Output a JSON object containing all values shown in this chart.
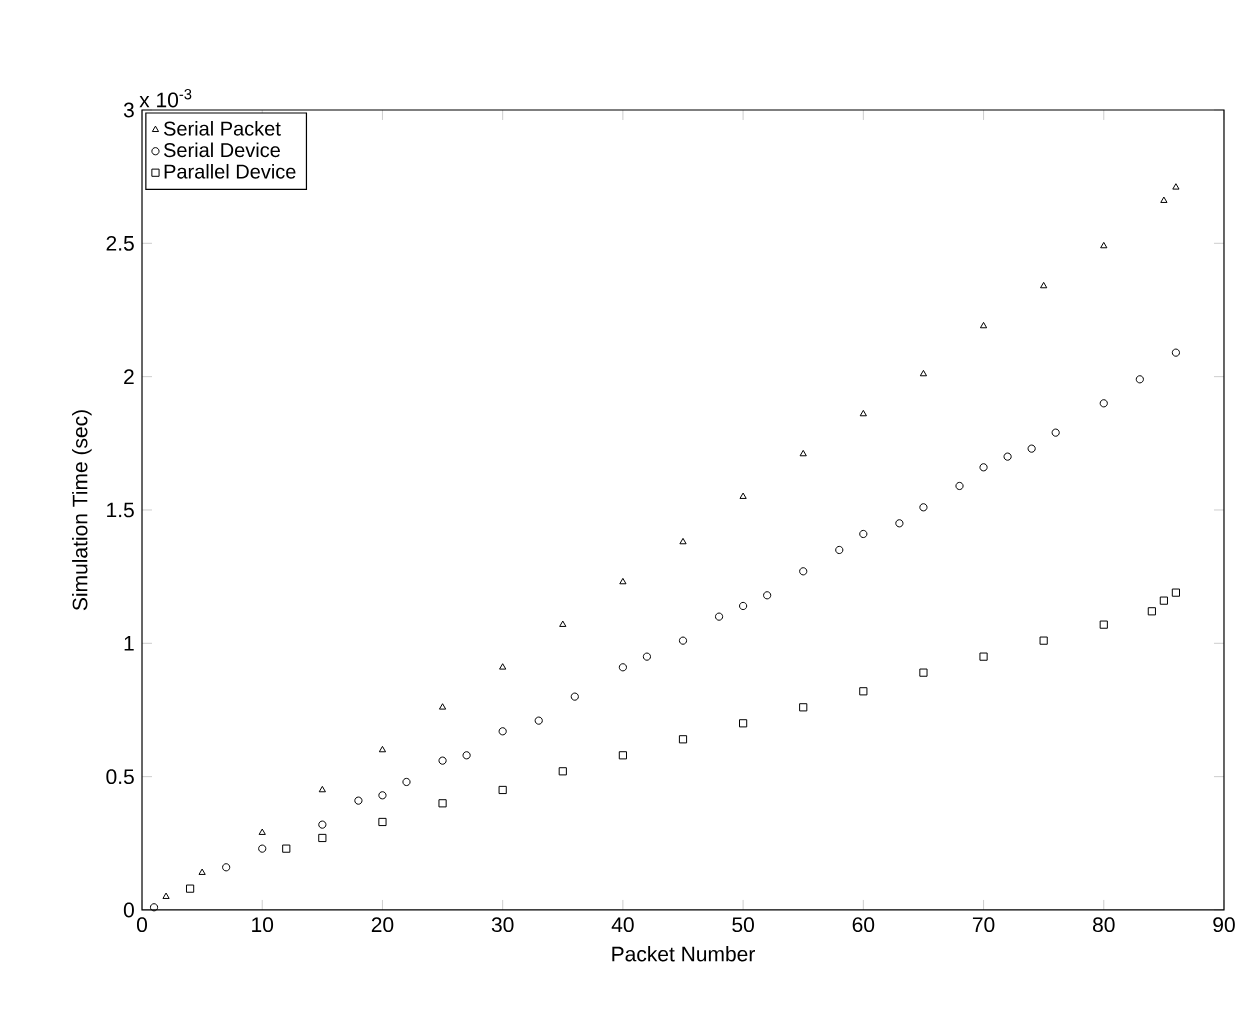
{
  "chart_data": {
    "type": "scatter",
    "xlabel": "Packet Number",
    "ylabel": "Simulation Time (sec)",
    "annotations": [
      "x 10$^{-3}$"
    ],
    "xlim": [
      0,
      90
    ],
    "xticks": [
      0,
      10,
      20,
      30,
      40,
      50,
      60,
      70,
      80,
      90
    ],
    "ylim": [
      0,
      3
    ],
    "yticks": [
      0,
      0.5,
      1,
      1.5,
      2,
      2.5,
      3
    ],
    "legend": "top left",
    "grid": false,
    "series": [
      {
        "name": "Serial Packet",
        "color": "#000000",
        "marker": "triangle",
        "x": [
          2,
          5,
          10,
          15,
          20,
          25,
          30,
          35,
          40,
          45,
          50,
          55,
          60,
          65,
          70,
          75,
          80,
          85,
          86
        ],
        "values": [
          0.05,
          0.14,
          0.29,
          0.45,
          0.6,
          0.76,
          0.91,
          1.07,
          1.23,
          1.38,
          1.55,
          1.71,
          1.86,
          2.01,
          2.19,
          2.34,
          2.49,
          2.66,
          2.71
        ]
      },
      {
        "name": "Serial Device",
        "color": "#000000",
        "marker": "circle",
        "x": [
          1,
          7,
          10,
          15,
          18,
          20,
          22,
          25,
          27,
          30,
          33,
          36,
          40,
          42,
          45,
          48,
          50,
          52,
          55,
          58,
          60,
          63,
          65,
          68,
          70,
          72,
          74,
          76,
          80,
          83,
          86
        ],
        "values": [
          0.01,
          0.16,
          0.23,
          0.32,
          0.41,
          0.43,
          0.48,
          0.56,
          0.58,
          0.67,
          0.71,
          0.8,
          0.91,
          0.95,
          1.01,
          1.1,
          1.14,
          1.18,
          1.27,
          1.35,
          1.41,
          1.45,
          1.51,
          1.59,
          1.66,
          1.7,
          1.73,
          1.79,
          1.9,
          1.99,
          2.09
        ]
      },
      {
        "name": "Parallel Device",
        "color": "#000000",
        "marker": "square",
        "x": [
          4,
          12,
          15,
          20,
          25,
          30,
          35,
          40,
          45,
          50,
          55,
          60,
          65,
          70,
          75,
          80,
          84,
          85,
          86
        ],
        "values": [
          0.08,
          0.23,
          0.27,
          0.33,
          0.4,
          0.45,
          0.52,
          0.58,
          0.64,
          0.7,
          0.76,
          0.82,
          0.89,
          0.95,
          1.01,
          1.07,
          1.12,
          1.16,
          1.19
        ]
      }
    ]
  }
}
